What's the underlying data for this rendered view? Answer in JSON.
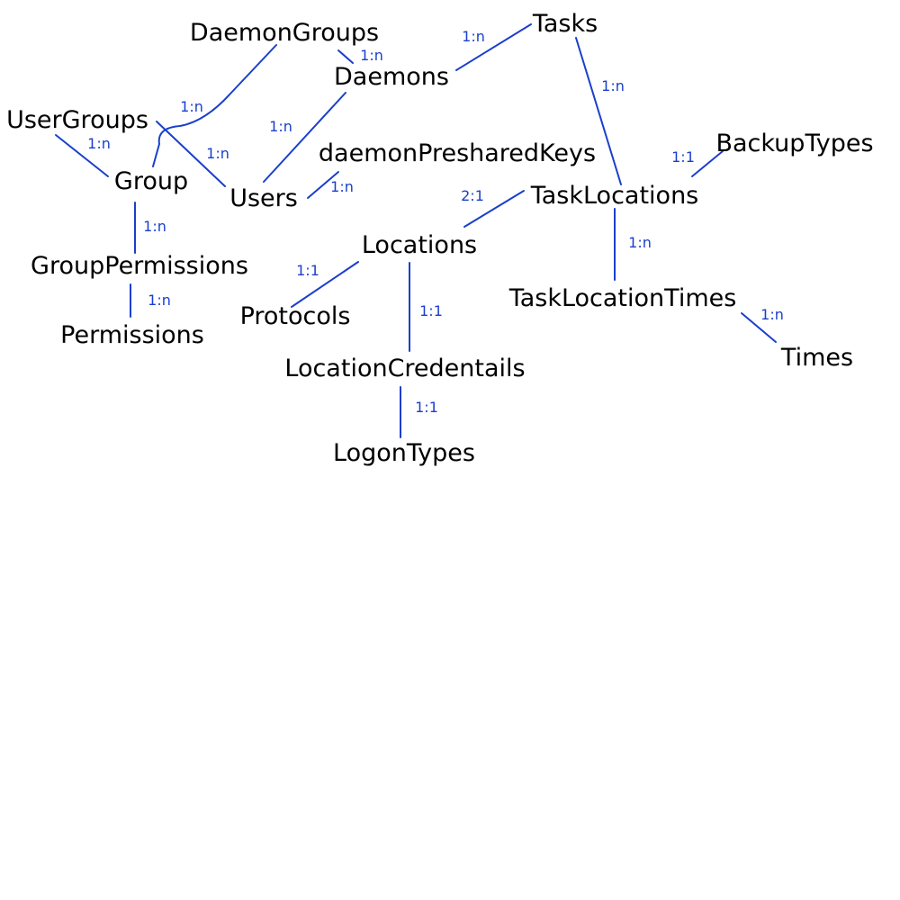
{
  "colors": {
    "line": "#1a3fcc",
    "entity_text": "#000000",
    "cardinality_text": "#1a3fcc",
    "background": "#ffffff"
  },
  "entities": {
    "daemon_groups": "DaemonGroups",
    "tasks": "Tasks",
    "daemons": "Daemons",
    "user_groups": "UserGroups",
    "group": "Group",
    "users": "Users",
    "daemon_preshared_keys": "daemonPresharedKeys",
    "backup_types": "BackupTypes",
    "task_locations": "TaskLocations",
    "locations": "Locations",
    "group_permissions": "GroupPermissions",
    "protocols": "Protocols",
    "permissions": "Permissions",
    "task_location_times": "TaskLocationTimes",
    "times": "Times",
    "location_credentials": "LocationCredentails",
    "logon_types": "LogonTypes"
  },
  "relationships": {
    "daemongroups_daemons": "1:n",
    "daemons_tasks": "1:n",
    "tasks_tasklocations": "1:n",
    "daemongroups_group": "1:n",
    "usergroups_group": "1:n",
    "usergroups_users": "1:n",
    "daemons_users": "1:n",
    "users_presharedkeys": "1:n",
    "tasklocations_backuptypes": "1:1",
    "tasklocations_locations": "2:1",
    "group_grouppermissions": "1:n",
    "tasklocations_times_link": "1:n",
    "locations_protocols": "1:1",
    "grouppermissions_permissions": "1:n",
    "locations_credentials": "1:1",
    "tasklocationtimes_times": "1:n",
    "credentials_logontypes": "1:1"
  }
}
